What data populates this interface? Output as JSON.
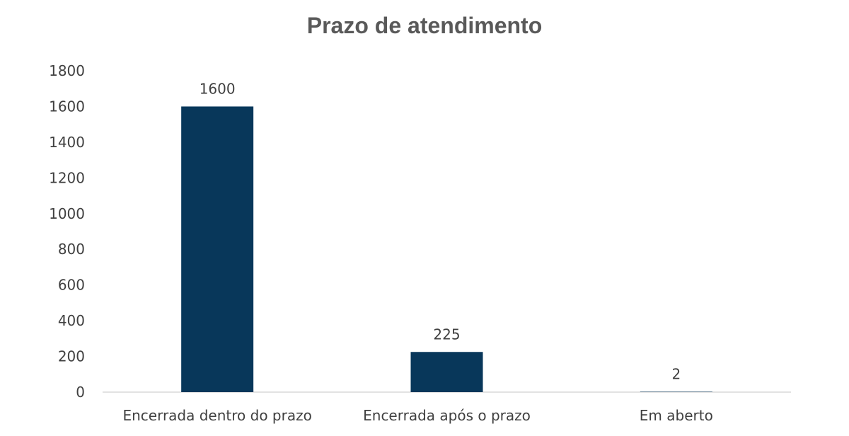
{
  "chart_data": {
    "type": "bar",
    "title": "Prazo de atendimento",
    "categories": [
      "Encerrada dentro do prazo",
      "Encerrada após o prazo",
      "Em aberto"
    ],
    "values": [
      1600,
      225,
      2
    ],
    "ylim": [
      0,
      1800
    ],
    "yticks": [
      0,
      200,
      400,
      600,
      800,
      1000,
      1200,
      1400,
      1600,
      1800
    ],
    "grid": false,
    "legend": "none",
    "bar_color": "#08375A",
    "axis_color": "#D9D9D9"
  }
}
